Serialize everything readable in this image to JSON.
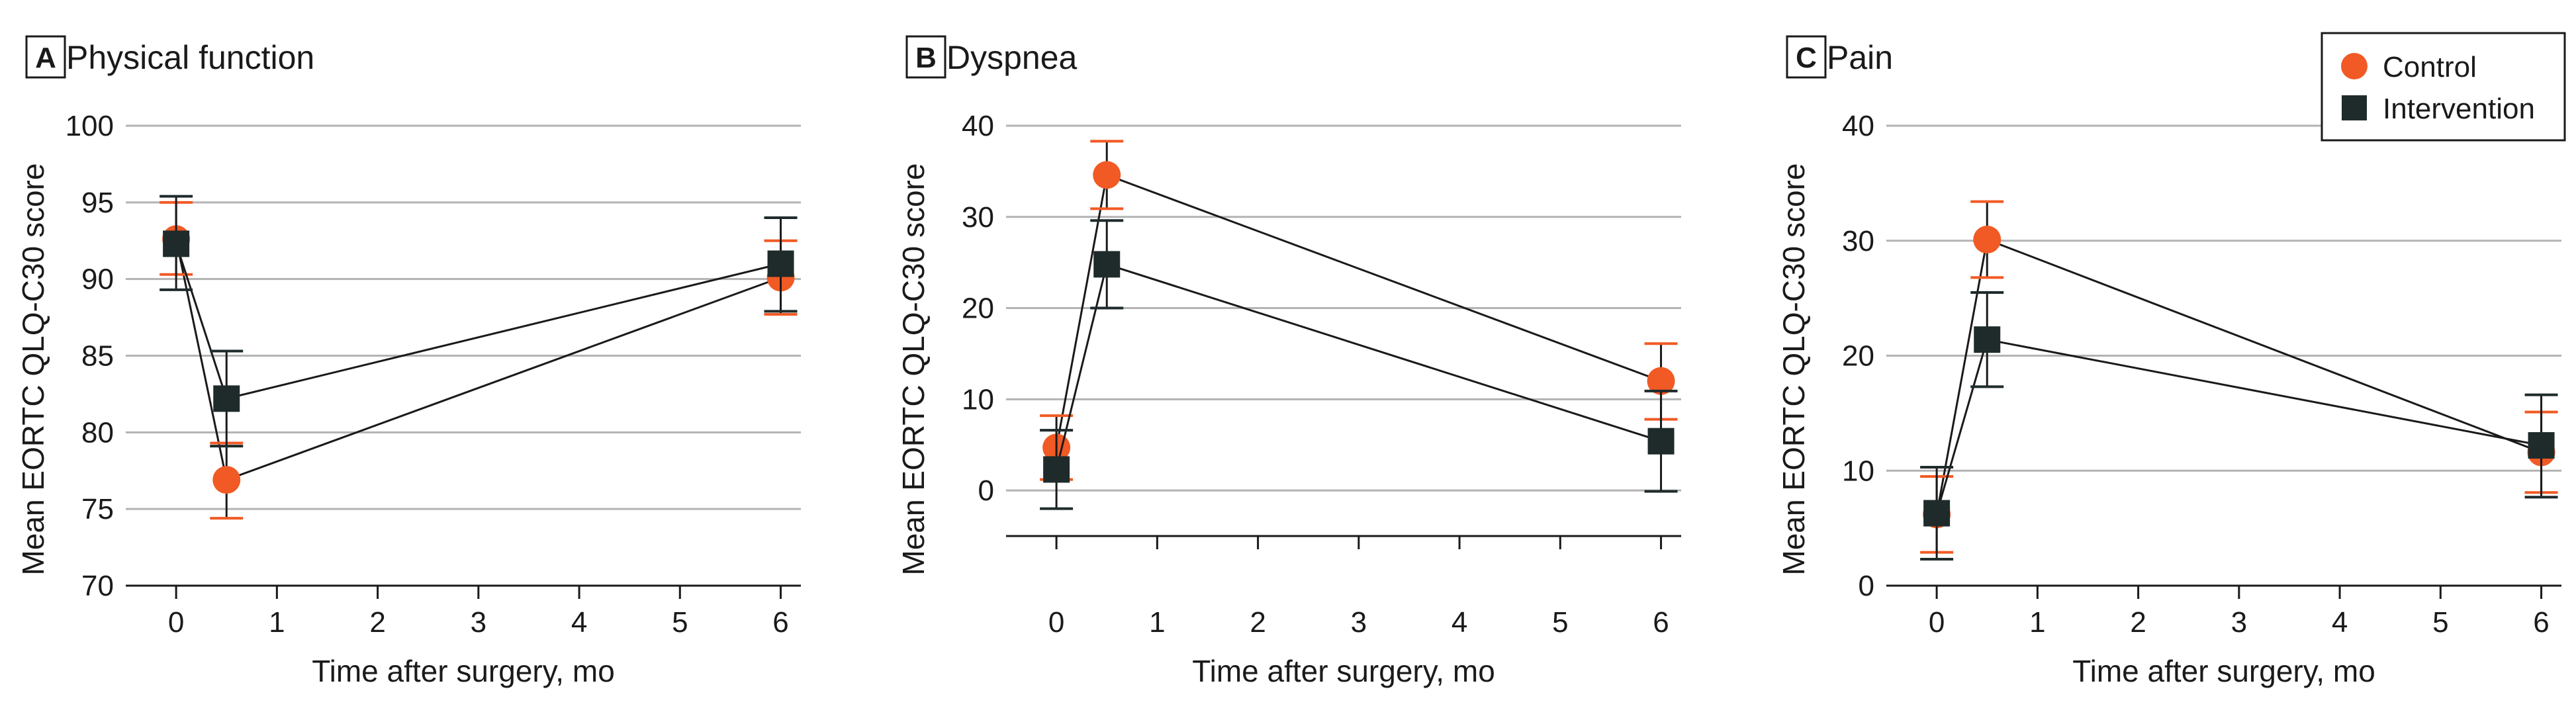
{
  "colors": {
    "control": "#f15a24",
    "intervention": "#1f2b2b",
    "grid": "#b3b3b3",
    "line": "#1a1a1a",
    "axis": "#1a1a1a"
  },
  "legend": {
    "items": [
      {
        "label": "Control",
        "marker": "circle",
        "color": "#f15a24"
      },
      {
        "label": "Intervention",
        "marker": "square",
        "color": "#1f2b2b"
      }
    ]
  },
  "chart_data": [
    {
      "type": "line",
      "panel_letter": "A",
      "title": "Physical function",
      "xlabel": "Time after surgery, mo",
      "ylabel": "Mean EORTC QLQ-C30 score",
      "xlim": [
        -0.5,
        6.2
      ],
      "ylim": [
        70,
        100
      ],
      "xticks": [
        0,
        1,
        2,
        3,
        4,
        5,
        6
      ],
      "yticks": [
        70,
        75,
        80,
        85,
        90,
        95,
        100
      ],
      "grid": true,
      "series": [
        {
          "name": "Control",
          "x": [
            0,
            0.5,
            6
          ],
          "y": [
            92.6,
            76.9,
            90.1
          ],
          "ci_low": [
            90.3,
            74.4,
            87.7
          ],
          "ci_high": [
            95.0,
            79.3,
            92.5
          ]
        },
        {
          "name": "Intervention",
          "x": [
            0,
            0.5,
            6
          ],
          "y": [
            92.3,
            82.2,
            91.0
          ],
          "ci_low": [
            89.3,
            79.1,
            87.9
          ],
          "ci_high": [
            95.4,
            85.3,
            94.0
          ]
        }
      ]
    },
    {
      "type": "line",
      "panel_letter": "B",
      "title": "Dyspnea",
      "xlabel": "Time after surgery, mo",
      "ylabel": "Mean EORTC QLQ-C30 score",
      "xlim": [
        -0.5,
        6.2
      ],
      "ylim": [
        -5,
        40
      ],
      "xticks": [
        0,
        1,
        2,
        3,
        4,
        5,
        6
      ],
      "yticks": [
        0,
        10,
        20,
        30,
        40
      ],
      "grid": true,
      "series": [
        {
          "name": "Control",
          "x": [
            0,
            0.5,
            6
          ],
          "y": [
            4.7,
            34.6,
            12.0
          ],
          "ci_low": [
            1.2,
            30.9,
            7.8
          ],
          "ci_high": [
            8.2,
            38.3,
            16.1
          ]
        },
        {
          "name": "Intervention",
          "x": [
            0,
            0.5,
            6
          ],
          "y": [
            2.3,
            24.8,
            5.4
          ],
          "ci_low": [
            -2.0,
            20.0,
            -0.1
          ],
          "ci_high": [
            6.6,
            29.6,
            10.9
          ]
        }
      ]
    },
    {
      "type": "line",
      "panel_letter": "C",
      "title": "Pain",
      "xlabel": "Time after surgery, mo",
      "ylabel": "Mean EORTC QLQ-C30 score",
      "xlim": [
        -0.5,
        6.2
      ],
      "ylim": [
        0,
        40
      ],
      "xticks": [
        0,
        1,
        2,
        3,
        4,
        5,
        6
      ],
      "yticks": [
        0,
        10,
        20,
        30,
        40
      ],
      "grid": true,
      "series": [
        {
          "name": "Control",
          "x": [
            0,
            0.5,
            6
          ],
          "y": [
            6.2,
            30.1,
            11.6
          ],
          "ci_low": [
            2.9,
            26.8,
            8.1
          ],
          "ci_high": [
            9.5,
            33.4,
            15.1
          ]
        },
        {
          "name": "Intervention",
          "x": [
            0,
            0.5,
            6
          ],
          "y": [
            6.3,
            21.4,
            12.2
          ],
          "ci_low": [
            2.3,
            17.3,
            7.7
          ],
          "ci_high": [
            10.3,
            25.5,
            16.6
          ]
        }
      ]
    }
  ]
}
